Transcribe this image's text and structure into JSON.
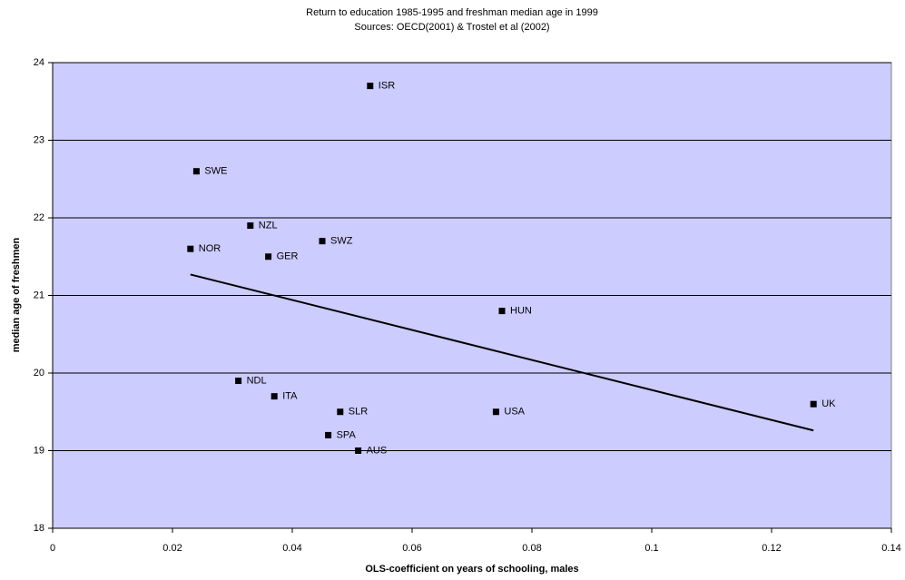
{
  "chart_data": {
    "type": "scatter",
    "title": "Return to education 1985-1995 and freshman median age in 1999",
    "subtitle": "Sources: OECD(2001) & Trostel et al (2002)",
    "x_label": "OLS-coefficient on years of schooling, males",
    "y_label": "median age of freshmen",
    "labels": [
      "ISR",
      "SWE",
      "NZL",
      "NOR",
      "SWZ",
      "GER",
      "HUN",
      "NDL",
      "ITA",
      "SLR",
      "USA",
      "SPA",
      "AUS",
      "UK"
    ],
    "x": [
      0.053,
      0.024,
      0.033,
      0.023,
      0.045,
      0.036,
      0.075,
      0.031,
      0.037,
      0.048,
      0.074,
      0.046,
      0.051,
      0.127
    ],
    "values": [
      23.7,
      22.6,
      21.9,
      21.6,
      21.7,
      21.5,
      20.8,
      19.9,
      19.7,
      19.5,
      19.5,
      19.2,
      19.0,
      19.6
    ],
    "color": "#000000",
    "trend": {
      "x": [
        0.023,
        0.127
      ],
      "y": [
        21.27,
        19.26
      ]
    },
    "xlim": [
      0,
      0.14
    ],
    "xticks": [
      0,
      0.02,
      0.04,
      0.06,
      0.08,
      0.1,
      0.12,
      0.14
    ],
    "ylim": [
      18,
      24
    ],
    "yticks": [
      18,
      19,
      20,
      21,
      22,
      23,
      24
    ],
    "grid": true,
    "plot_background": "#ccccff"
  }
}
